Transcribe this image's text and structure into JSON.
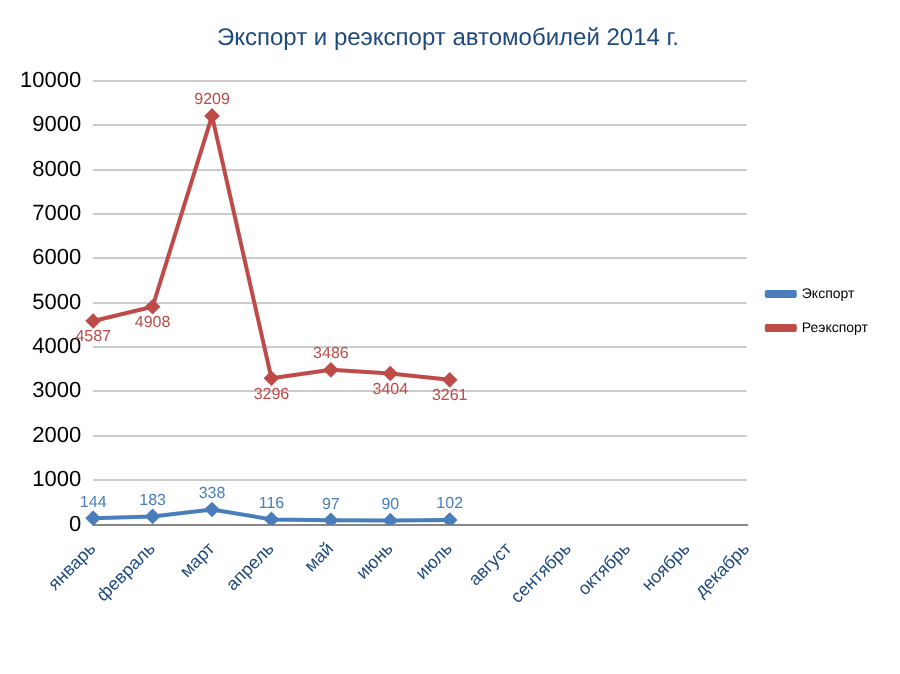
{
  "chart_data": {
    "type": "line",
    "title": "Экспорт и реэкспорт автомобилей 2014 г.",
    "categories": [
      "январь",
      "февраль",
      "март",
      "апрель",
      "май",
      "июнь",
      "июль",
      "август",
      "сентябрь",
      "октябрь",
      "ноябрь",
      "декабрь"
    ],
    "series": [
      {
        "name": "Экспорт",
        "color": "#4a7ebb",
        "values": [
          144,
          183,
          338,
          116,
          97,
          90,
          102,
          null,
          null,
          null,
          null,
          null
        ]
      },
      {
        "name": "Реэкспорт",
        "color": "#be4b48",
        "values": [
          4587,
          4908,
          9209,
          3296,
          3486,
          3404,
          3261,
          null,
          null,
          null,
          null,
          null
        ]
      }
    ],
    "ylim": [
      0,
      10000
    ],
    "yticks": [
      0,
      1000,
      2000,
      3000,
      4000,
      5000,
      6000,
      7000,
      8000,
      9000,
      10000
    ],
    "grid": "y",
    "legend": "right",
    "marker": "diamond",
    "line_style": "solid",
    "data_labels": true
  }
}
